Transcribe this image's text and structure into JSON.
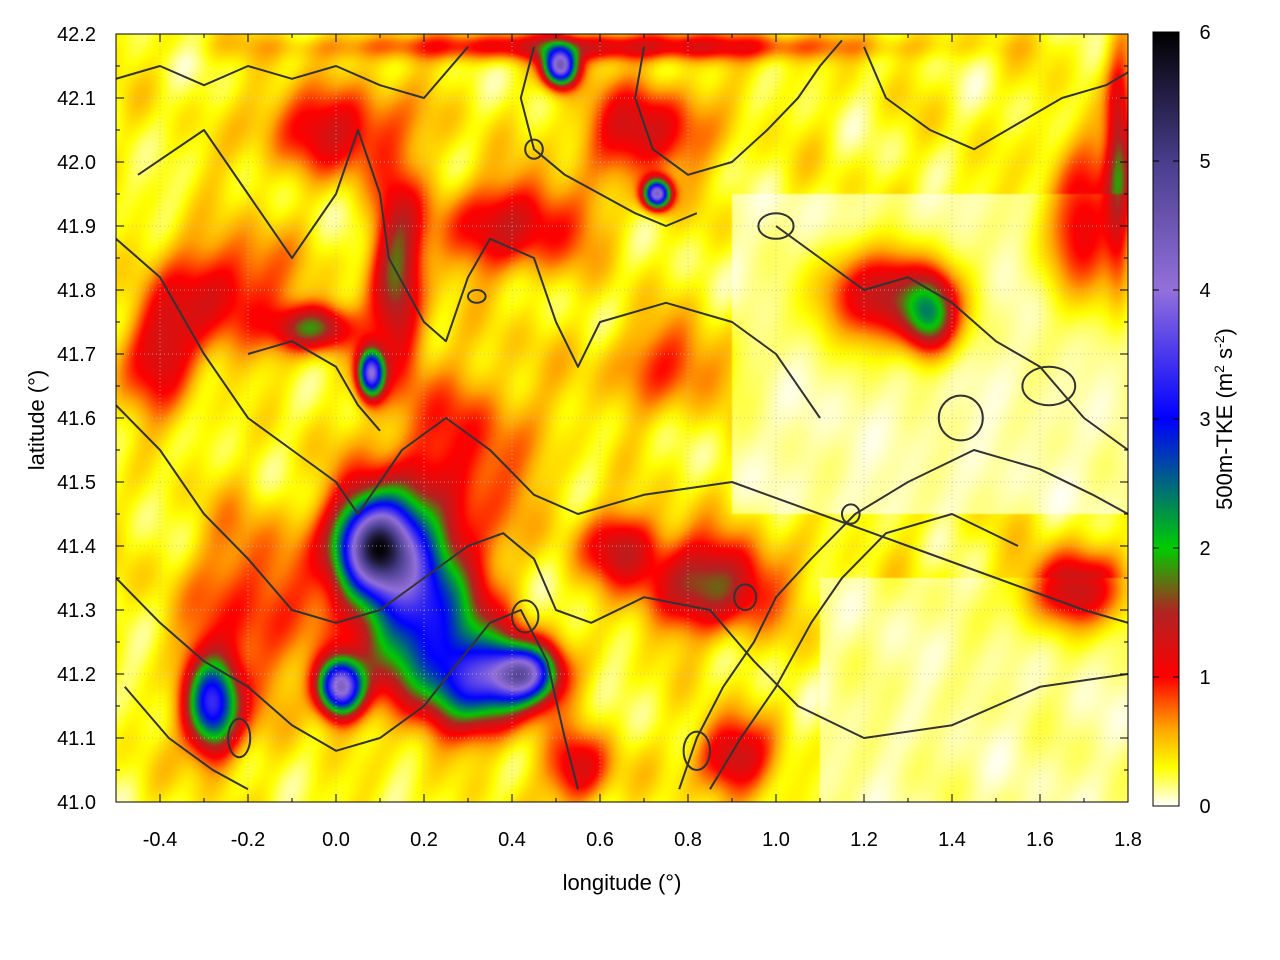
{
  "chart_data": {
    "type": "heatmap",
    "title": "",
    "xlabel": "longitude (°)",
    "ylabel": "latitude (°)",
    "colorbar_label": "500m-TKE (m² s⁻²)",
    "colorbar_label_main": "500m-TKE (m",
    "colorbar_label_sup1": "2",
    "colorbar_label_mid": " s",
    "colorbar_label_sup2": "-2",
    "colorbar_label_end": ")",
    "xlim": [
      -0.5,
      1.8
    ],
    "ylim": [
      41.0,
      42.2
    ],
    "clim": [
      0,
      6
    ],
    "grid": true,
    "overlay": "black terrain elevation contour lines",
    "x_ticks": [
      -0.4,
      -0.2,
      0.0,
      0.2,
      0.4,
      0.6,
      0.8,
      1.0,
      1.2,
      1.4,
      1.6,
      1.8
    ],
    "x_tick_labels": [
      "-0.4",
      "-0.2",
      "0.0",
      "0.2",
      "0.4",
      "0.6",
      "0.8",
      "1.0",
      "1.2",
      "1.4",
      "1.6",
      "1.8"
    ],
    "y_ticks": [
      41.0,
      41.1,
      41.2,
      41.3,
      41.4,
      41.5,
      41.6,
      41.7,
      41.8,
      41.9,
      42.0,
      42.1,
      42.2
    ],
    "y_tick_labels": [
      "41.0",
      "41.1",
      "41.2",
      "41.3",
      "41.4",
      "41.5",
      "41.6",
      "41.7",
      "41.8",
      "41.9",
      "42.0",
      "42.1",
      "42.2"
    ],
    "colorbar_ticks": [
      0,
      1,
      2,
      3,
      4,
      5,
      6
    ],
    "colorbar_tick_labels": [
      "0",
      "1",
      "2",
      "3",
      "4",
      "5",
      "6"
    ],
    "colormap": [
      {
        "v": 0.0,
        "c": "#ffffff"
      },
      {
        "v": 0.3,
        "c": "#ffff00"
      },
      {
        "v": 0.6,
        "c": "#ffa500"
      },
      {
        "v": 1.0,
        "c": "#ff0000"
      },
      {
        "v": 1.5,
        "c": "#b22222"
      },
      {
        "v": 2.0,
        "c": "#00cc00"
      },
      {
        "v": 3.0,
        "c": "#0000ff"
      },
      {
        "v": 4.0,
        "c": "#9370db"
      },
      {
        "v": 5.0,
        "c": "#483d8b"
      },
      {
        "v": 6.0,
        "c": "#000000"
      }
    ],
    "hotspots": [
      {
        "lon": 0.09,
        "lat": 41.4,
        "tke": 4.2,
        "sx": 0.06,
        "sy": 0.05
      },
      {
        "lon": 0.01,
        "lat": 41.18,
        "tke": 4.0,
        "sx": 0.035,
        "sy": 0.03
      },
      {
        "lon": -0.28,
        "lat": 41.15,
        "tke": 3.0,
        "sx": 0.04,
        "sy": 0.05
      },
      {
        "lon": 0.33,
        "lat": 41.19,
        "tke": 2.6,
        "sx": 0.08,
        "sy": 0.05
      },
      {
        "lon": 0.43,
        "lat": 41.2,
        "tke": 3.2,
        "sx": 0.05,
        "sy": 0.03
      },
      {
        "lon": 0.21,
        "lat": 41.28,
        "tke": 1.9,
        "sx": 0.08,
        "sy": 0.08
      },
      {
        "lon": 0.15,
        "lat": 41.36,
        "tke": 1.5,
        "sx": 0.1,
        "sy": 0.1
      },
      {
        "lon": 0.51,
        "lat": 42.15,
        "tke": 4.0,
        "sx": 0.025,
        "sy": 0.02
      },
      {
        "lon": 0.73,
        "lat": 41.95,
        "tke": 4.0,
        "sx": 0.02,
        "sy": 0.015
      },
      {
        "lon": 0.08,
        "lat": 41.67,
        "tke": 3.5,
        "sx": 0.02,
        "sy": 0.025
      },
      {
        "lon": -0.05,
        "lat": 41.74,
        "tke": 1.5,
        "sx": 0.06,
        "sy": 0.025
      },
      {
        "lon": 0.14,
        "lat": 41.82,
        "tke": 1.4,
        "sx": 0.04,
        "sy": 0.1
      },
      {
        "lon": 1.25,
        "lat": 41.79,
        "tke": 1.3,
        "sx": 0.1,
        "sy": 0.05
      },
      {
        "lon": 1.35,
        "lat": 41.76,
        "tke": 1.6,
        "sx": 0.04,
        "sy": 0.04
      },
      {
        "lon": 0.85,
        "lat": 41.34,
        "tke": 1.4,
        "sx": 0.1,
        "sy": 0.05
      },
      {
        "lon": 0.65,
        "lat": 41.4,
        "tke": 1.0,
        "sx": 0.06,
        "sy": 0.04
      },
      {
        "lon": 1.68,
        "lat": 41.33,
        "tke": 1.2,
        "sx": 0.08,
        "sy": 0.04
      },
      {
        "lon": 0.9,
        "lat": 41.07,
        "tke": 1.1,
        "sx": 0.06,
        "sy": 0.04
      },
      {
        "lon": 0.55,
        "lat": 41.05,
        "tke": 1.0,
        "sx": 0.05,
        "sy": 0.04
      },
      {
        "lon": -0.4,
        "lat": 41.7,
        "tke": 1.0,
        "sx": 0.06,
        "sy": 0.06
      },
      {
        "lon": -0.25,
        "lat": 41.8,
        "tke": 0.9,
        "sx": 0.1,
        "sy": 0.06
      },
      {
        "lon": 0.4,
        "lat": 41.9,
        "tke": 1.0,
        "sx": 0.12,
        "sy": 0.05
      },
      {
        "lon": 0.7,
        "lat": 42.05,
        "tke": 1.0,
        "sx": 0.1,
        "sy": 0.05
      },
      {
        "lon": 1.7,
        "lat": 41.9,
        "tke": 1.0,
        "sx": 0.06,
        "sy": 0.08
      },
      {
        "lon": 0.0,
        "lat": 42.05,
        "tke": 0.9,
        "sx": 0.12,
        "sy": 0.05
      },
      {
        "lon": -0.2,
        "lat": 41.3,
        "tke": 0.7,
        "sx": 0.1,
        "sy": 0.1
      },
      {
        "lon": 0.3,
        "lat": 41.55,
        "tke": 0.6,
        "sx": 0.12,
        "sy": 0.1
      },
      {
        "lon": 0.75,
        "lat": 41.68,
        "tke": 0.6,
        "sx": 0.1,
        "sy": 0.05
      },
      {
        "lon": 1.78,
        "lat": 42.0,
        "tke": 1.2,
        "sx": 0.02,
        "sy": 0.12
      },
      {
        "lon": 0.6,
        "lat": 42.18,
        "tke": 1.0,
        "sx": 0.4,
        "sy": 0.015
      }
    ],
    "contours": [
      [
        [
          -0.45,
          41.98
        ],
        [
          -0.3,
          42.05
        ],
        [
          -0.2,
          41.95
        ],
        [
          -0.1,
          41.85
        ],
        [
          0.0,
          41.95
        ],
        [
          0.05,
          42.05
        ],
        [
          0.1,
          41.95
        ],
        [
          0.12,
          41.85
        ],
        [
          0.2,
          41.75
        ],
        [
          0.25,
          41.72
        ],
        [
          0.3,
          41.82
        ],
        [
          0.35,
          41.88
        ],
        [
          0.45,
          41.85
        ],
        [
          0.5,
          41.75
        ],
        [
          0.55,
          41.68
        ],
        [
          0.6,
          41.75
        ],
        [
          0.75,
          41.78
        ],
        [
          0.9,
          41.75
        ],
        [
          1.0,
          41.7
        ],
        [
          1.1,
          41.6
        ]
      ],
      [
        [
          -0.5,
          41.88
        ],
        [
          -0.4,
          41.82
        ],
        [
          -0.3,
          41.7
        ],
        [
          -0.2,
          41.6
        ],
        [
          -0.1,
          41.55
        ],
        [
          0.0,
          41.5
        ],
        [
          0.05,
          41.45
        ],
        [
          0.1,
          41.5
        ],
        [
          0.15,
          41.55
        ],
        [
          0.25,
          41.6
        ],
        [
          0.35,
          41.55
        ],
        [
          0.45,
          41.48
        ],
        [
          0.55,
          41.45
        ],
        [
          0.7,
          41.48
        ],
        [
          0.9,
          41.5
        ],
        [
          1.1,
          41.45
        ],
        [
          1.3,
          41.4
        ],
        [
          1.5,
          41.35
        ],
        [
          1.7,
          41.3
        ],
        [
          1.8,
          41.28
        ]
      ],
      [
        [
          -0.5,
          41.62
        ],
        [
          -0.4,
          41.55
        ],
        [
          -0.3,
          41.45
        ],
        [
          -0.2,
          41.38
        ],
        [
          -0.1,
          41.3
        ],
        [
          0.0,
          41.28
        ],
        [
          0.1,
          41.3
        ],
        [
          0.2,
          41.35
        ],
        [
          0.3,
          41.4
        ],
        [
          0.38,
          41.42
        ],
        [
          0.45,
          41.38
        ],
        [
          0.5,
          41.3
        ],
        [
          0.58,
          41.28
        ],
        [
          0.7,
          41.32
        ],
        [
          0.85,
          41.3
        ],
        [
          0.95,
          41.22
        ],
        [
          1.05,
          41.15
        ],
        [
          1.2,
          41.1
        ],
        [
          1.4,
          41.12
        ],
        [
          1.6,
          41.18
        ],
        [
          1.8,
          41.2
        ]
      ],
      [
        [
          -0.5,
          41.35
        ],
        [
          -0.4,
          41.28
        ],
        [
          -0.3,
          41.22
        ],
        [
          -0.2,
          41.18
        ],
        [
          -0.1,
          41.12
        ],
        [
          0.0,
          41.08
        ],
        [
          0.1,
          41.1
        ],
        [
          0.2,
          41.15
        ],
        [
          0.28,
          41.22
        ],
        [
          0.35,
          41.28
        ],
        [
          0.42,
          41.3
        ],
        [
          0.48,
          41.22
        ],
        [
          0.52,
          41.1
        ],
        [
          0.55,
          41.02
        ]
      ],
      [
        [
          -0.48,
          41.18
        ],
        [
          -0.38,
          41.1
        ],
        [
          -0.28,
          41.05
        ],
        [
          -0.2,
          41.02
        ]
      ],
      [
        [
          0.78,
          41.02
        ],
        [
          0.82,
          41.1
        ],
        [
          0.88,
          41.18
        ],
        [
          0.95,
          41.25
        ],
        [
          1.0,
          41.32
        ],
        [
          1.08,
          41.38
        ],
        [
          1.18,
          41.45
        ],
        [
          1.3,
          41.5
        ],
        [
          1.45,
          41.55
        ],
        [
          1.6,
          41.52
        ],
        [
          1.72,
          41.48
        ],
        [
          1.8,
          41.45
        ]
      ],
      [
        [
          0.85,
          41.02
        ],
        [
          0.92,
          41.1
        ],
        [
          1.0,
          41.18
        ],
        [
          1.08,
          41.28
        ],
        [
          1.15,
          41.35
        ],
        [
          1.25,
          41.42
        ],
        [
          1.4,
          41.45
        ],
        [
          1.55,
          41.4
        ]
      ],
      [
        [
          0.7,
          42.18
        ],
        [
          0.68,
          42.1
        ],
        [
          0.72,
          42.02
        ],
        [
          0.8,
          41.98
        ],
        [
          0.9,
          42.0
        ],
        [
          0.98,
          42.05
        ],
        [
          1.05,
          42.1
        ],
        [
          1.1,
          42.15
        ],
        [
          1.15,
          42.19
        ]
      ],
      [
        [
          0.45,
          42.18
        ],
        [
          0.42,
          42.1
        ],
        [
          0.45,
          42.02
        ],
        [
          0.52,
          41.98
        ],
        [
          0.6,
          41.95
        ],
        [
          0.68,
          41.92
        ],
        [
          0.75,
          41.9
        ],
        [
          0.82,
          41.92
        ]
      ],
      [
        [
          1.2,
          42.18
        ],
        [
          1.25,
          42.1
        ],
        [
          1.35,
          42.05
        ],
        [
          1.45,
          42.02
        ],
        [
          1.55,
          42.06
        ],
        [
          1.65,
          42.1
        ],
        [
          1.75,
          42.12
        ],
        [
          1.8,
          42.14
        ]
      ],
      [
        [
          1.0,
          41.9
        ],
        [
          1.1,
          41.85
        ],
        [
          1.2,
          41.8
        ],
        [
          1.3,
          41.82
        ],
        [
          1.4,
          41.78
        ],
        [
          1.5,
          41.72
        ],
        [
          1.6,
          41.68
        ],
        [
          1.7,
          41.6
        ],
        [
          1.8,
          41.55
        ]
      ],
      [
        [
          -0.2,
          41.7
        ],
        [
          -0.1,
          41.72
        ],
        [
          0.0,
          41.68
        ],
        [
          0.05,
          41.62
        ],
        [
          0.1,
          41.58
        ]
      ],
      [
        [
          0.3,
          42.18
        ],
        [
          0.2,
          42.1
        ],
        [
          0.1,
          42.12
        ],
        [
          0.0,
          42.15
        ],
        [
          -0.1,
          42.13
        ],
        [
          -0.2,
          42.15
        ],
        [
          -0.3,
          42.12
        ],
        [
          -0.4,
          42.15
        ],
        [
          -0.5,
          42.13
        ]
      ]
    ],
    "contour_loops": [
      {
        "lon": -0.22,
        "lat": 41.1,
        "rx": 0.025,
        "ry": 0.03
      },
      {
        "lon": 0.43,
        "lat": 41.29,
        "rx": 0.03,
        "ry": 0.025
      },
      {
        "lon": 0.82,
        "lat": 41.08,
        "rx": 0.03,
        "ry": 0.03
      },
      {
        "lon": 1.42,
        "lat": 41.6,
        "rx": 0.05,
        "ry": 0.035
      },
      {
        "lon": 1.62,
        "lat": 41.65,
        "rx": 0.06,
        "ry": 0.03
      },
      {
        "lon": 0.93,
        "lat": 41.32,
        "rx": 0.025,
        "ry": 0.02
      },
      {
        "lon": 0.45,
        "lat": 42.02,
        "rx": 0.02,
        "ry": 0.015
      },
      {
        "lon": 1.17,
        "lat": 41.45,
        "rx": 0.02,
        "ry": 0.015
      },
      {
        "lon": 0.32,
        "lat": 41.79,
        "rx": 0.02,
        "ry": 0.01
      },
      {
        "lon": 1.0,
        "lat": 41.9,
        "rx": 0.04,
        "ry": 0.02
      }
    ]
  }
}
